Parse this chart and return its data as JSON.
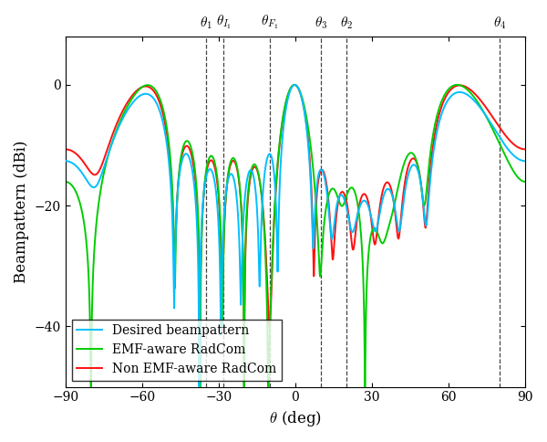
{
  "theta_lines": [
    -35,
    -28,
    -10,
    10,
    20,
    80
  ],
  "theta_labels": [
    "$\\theta_1$",
    "$\\theta_{I_1}$",
    "$\\theta_{F_1}$",
    "$\\theta_3$",
    "$\\theta_2$",
    "$\\theta_4$"
  ],
  "ylim": [
    -50,
    8
  ],
  "xlim": [
    -90,
    90
  ],
  "yticks": [
    0,
    -20,
    -40
  ],
  "xticks": [
    -90,
    -60,
    -30,
    0,
    30,
    60,
    90
  ],
  "ylabel": "Beampattern (dBi)",
  "xlabel": "$\\theta$ (deg)",
  "legend": [
    "Desired beampattern",
    "EMF-aware RadCom",
    "Non EMF-aware RadCom"
  ],
  "colors": [
    "#00bfff",
    "#00cc00",
    "#ff1111"
  ],
  "linewidths": [
    1.4,
    1.4,
    1.4
  ],
  "figsize": [
    6.0,
    4.84
  ],
  "dpi": 100
}
